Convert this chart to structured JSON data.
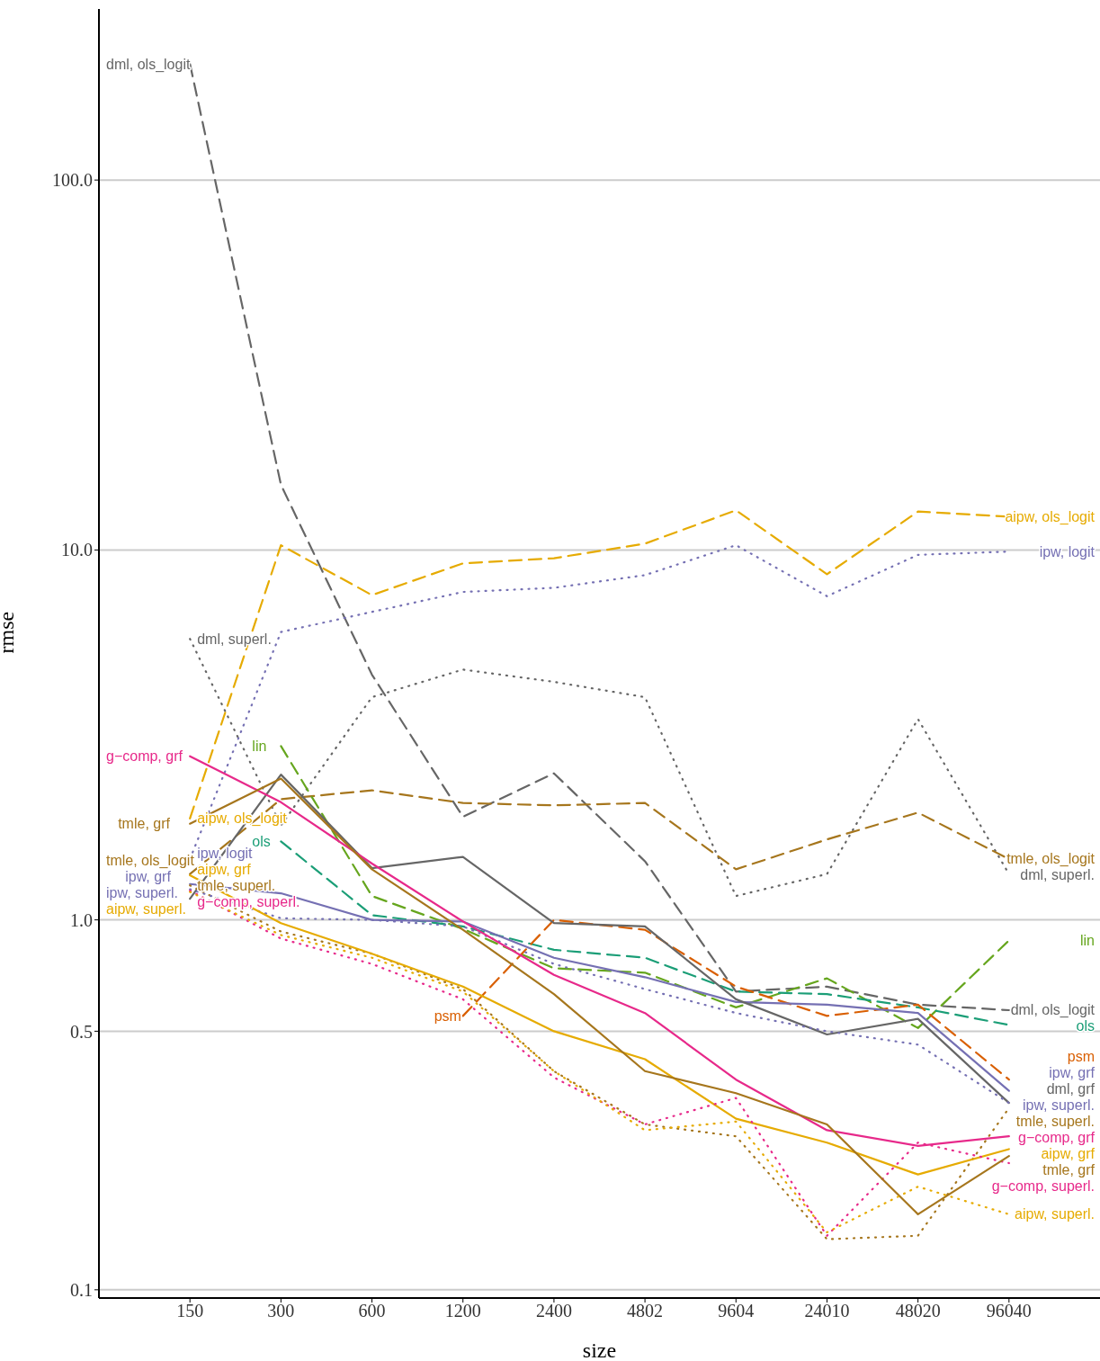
{
  "chart_data": {
    "type": "line",
    "xlabel": "size",
    "ylabel": "rmse",
    "log": "y",
    "grid": "y",
    "marker": "none",
    "categories": [
      "150",
      "300",
      "600",
      "1200",
      "2400",
      "4802",
      "9604",
      "24010",
      "48020",
      "96040"
    ],
    "ylim": [
      0.095,
      290
    ],
    "yticks": [
      0.1,
      0.5,
      {
        "value": 1,
        "label": "1.0"
      },
      {
        "value": 10,
        "label": "10.0"
      },
      {
        "value": 100,
        "label": "100.0"
      }
    ],
    "series": [
      {
        "name": "dml, ols_logit",
        "color": "#666666",
        "line_style": "dashed",
        "values": [
          206,
          15.0,
          4.6,
          1.9,
          2.49,
          1.44,
          0.64,
          0.66,
          0.59,
          0.57
        ]
      },
      {
        "name": "aipw, ols_logit",
        "color": "#e6ab02",
        "line_style": "dashed",
        "values": [
          1.88,
          10.3,
          7.55,
          9.2,
          9.5,
          10.4,
          12.8,
          8.6,
          12.7,
          12.3
        ]
      },
      {
        "name": "ipw, logit",
        "color": "#7570b3",
        "line_style": "dotted",
        "values": [
          1.46,
          6.0,
          6.8,
          7.7,
          7.9,
          8.55,
          10.3,
          7.5,
          9.7,
          9.9
        ]
      },
      {
        "name": "dml, superl.",
        "color": "#666666",
        "line_style": "dotted",
        "values": [
          5.75,
          1.8,
          4.0,
          4.75,
          4.4,
          4.0,
          1.16,
          1.33,
          3.49,
          1.33
        ]
      },
      {
        "name": "tmle, ols_logit",
        "color": "#a6761d",
        "line_style": "dashed",
        "values": [
          1.33,
          2.12,
          2.24,
          2.07,
          2.04,
          2.07,
          1.37,
          1.65,
          1.95,
          1.46
        ]
      },
      {
        "name": "lin",
        "color": "#66a61e",
        "line_style": "dashed",
        "values": [
          null,
          2.95,
          1.16,
          0.945,
          0.74,
          0.72,
          0.58,
          0.695,
          0.51,
          0.88
        ]
      },
      {
        "name": "ols",
        "color": "#1b9e77",
        "line_style": "dashed",
        "values": [
          null,
          1.63,
          1.03,
          0.96,
          0.83,
          0.79,
          0.64,
          0.63,
          0.58,
          0.52
        ]
      },
      {
        "name": "psm",
        "color": "#d95f02",
        "line_style": "dashed",
        "values": [
          null,
          null,
          null,
          0.55,
          1.0,
          0.94,
          0.66,
          0.55,
          0.59,
          0.37
        ]
      },
      {
        "name": "ipw, grf",
        "color": "#7570b3",
        "line_style": "solid",
        "values": [
          1.25,
          1.18,
          1.0,
          0.99,
          0.79,
          0.7,
          0.6,
          0.59,
          0.56,
          0.345
        ]
      },
      {
        "name": "dml, grf",
        "color": "#666666",
        "line_style": "solid",
        "values": [
          1.14,
          2.47,
          1.38,
          1.48,
          0.98,
          0.96,
          0.61,
          0.49,
          0.54,
          0.32
        ]
      },
      {
        "name": "tmle, superl.",
        "color": "#a6761d",
        "line_style": "dotted",
        "values": [
          1.24,
          0.93,
          0.81,
          0.65,
          0.39,
          0.28,
          0.26,
          0.137,
          0.14,
          0.31
        ]
      },
      {
        "name": "ipw, superl.",
        "color": "#7570b3",
        "line_style": "dotted",
        "values": [
          1.21,
          1.01,
          1.0,
          0.96,
          0.76,
          0.65,
          0.56,
          0.5,
          0.46,
          0.32
        ]
      },
      {
        "name": "g−comp, grf",
        "color": "#e7298a",
        "line_style": "solid",
        "values": [
          2.77,
          2.08,
          1.42,
          0.99,
          0.71,
          0.56,
          0.37,
          0.27,
          0.245,
          0.26
        ]
      },
      {
        "name": "aipw, grf",
        "color": "#e6ab02",
        "line_style": "solid",
        "values": [
          1.32,
          0.98,
          0.81,
          0.66,
          0.5,
          0.42,
          0.29,
          0.25,
          0.205,
          0.24
        ]
      },
      {
        "name": "g−comp, superl.",
        "color": "#e7298a",
        "line_style": "dotted",
        "values": [
          1.2,
          0.89,
          0.76,
          0.61,
          0.375,
          0.28,
          0.33,
          0.14,
          0.25,
          0.22
        ]
      },
      {
        "name": "tmle, grf",
        "color": "#a6761d",
        "line_style": "solid",
        "values": [
          1.82,
          2.41,
          1.37,
          0.94,
          0.63,
          0.39,
          0.34,
          0.28,
          0.16,
          0.23
        ]
      },
      {
        "name": "aipw, superl.",
        "color": "#e6ab02",
        "line_style": "dotted",
        "values": [
          1.19,
          0.91,
          0.79,
          0.64,
          0.39,
          0.27,
          0.285,
          0.143,
          0.19,
          0.16
        ]
      }
    ],
    "annotations": [
      {
        "text": "dml, ols_logit",
        "x": "150",
        "y": 206
      },
      {
        "text": "dml, superl.",
        "x": "150",
        "y": 5.75
      },
      {
        "text": "g−comp, grf",
        "x": "150",
        "y": 2.77
      },
      {
        "text": "lin",
        "x": "300",
        "y": 2.95
      },
      {
        "text": "tmle, grf",
        "x": "150",
        "y": 1.82
      },
      {
        "text": "aipw, ols_logit",
        "x": "150",
        "y": 1.88
      },
      {
        "text": "g−comp, superl.",
        "x": "150",
        "y": 1.2
      },
      {
        "text": "ols",
        "x": "300",
        "y": 1.63
      },
      {
        "text": "tmle, ols_logit",
        "x": "150",
        "y": 1.33
      },
      {
        "text": "aipw, grf",
        "x": "150",
        "y": 1.32
      },
      {
        "text": "ipw, logit",
        "x": "150",
        "y": 1.46
      },
      {
        "text": "aipw, superl.",
        "x": "150",
        "y": 1.19
      },
      {
        "text": "ipw, grf",
        "x": "150",
        "y": 1.25
      },
      {
        "text": "ipw, superl.",
        "x": "150",
        "y": 1.21
      },
      {
        "text": "tmle, superl.",
        "x": "150",
        "y": 1.24
      },
      {
        "text": "psm",
        "x": "1200",
        "y": 0.55
      }
    ]
  }
}
